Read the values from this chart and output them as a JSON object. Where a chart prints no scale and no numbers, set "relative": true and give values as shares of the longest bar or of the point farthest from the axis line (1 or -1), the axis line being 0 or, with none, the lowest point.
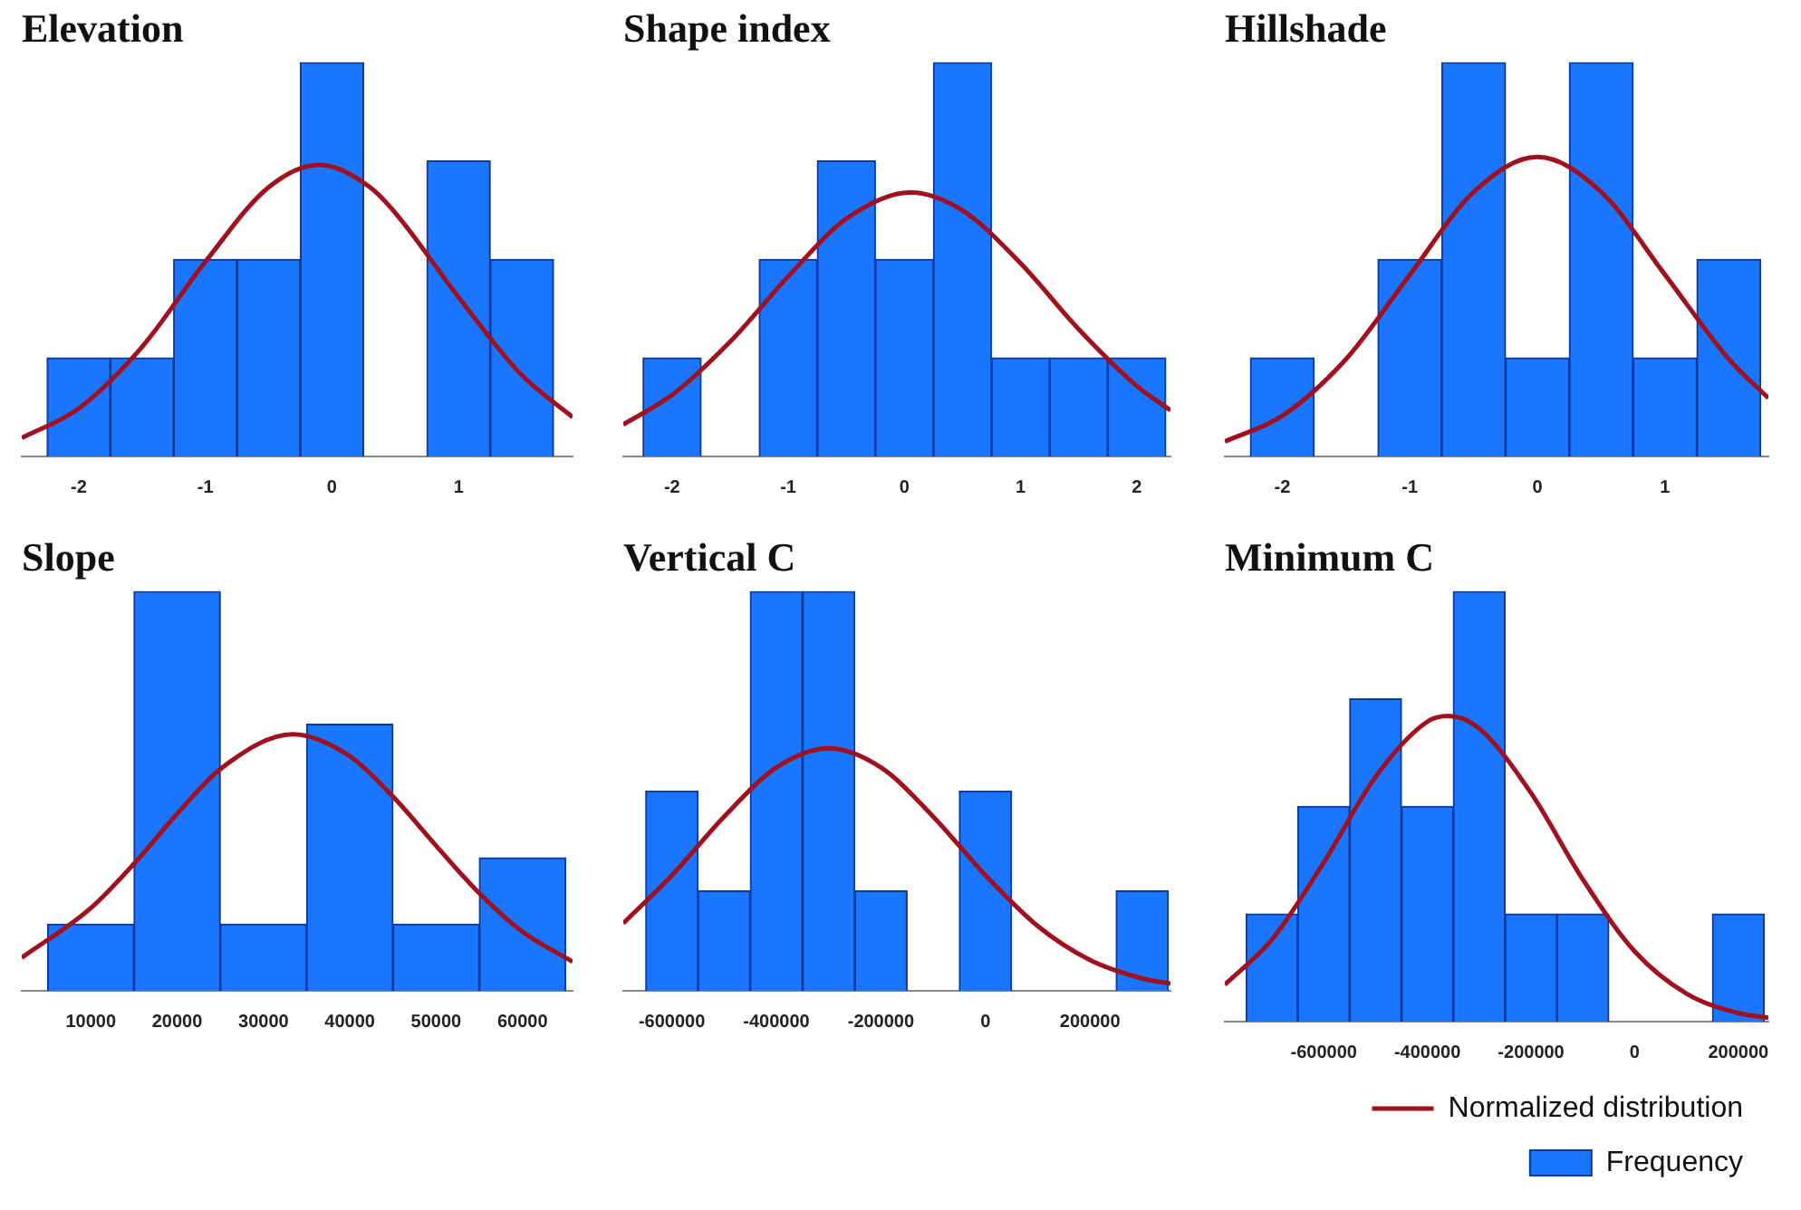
{
  "chart_data": [
    {
      "type": "histogram",
      "title": "Elevation",
      "relative": true,
      "xlim": [
        -2.45,
        1.9
      ],
      "xticks": [
        -2,
        -1,
        0,
        1
      ],
      "bins": [
        -2.25,
        -1.75,
        -1.25,
        -0.75,
        -0.25,
        0.25,
        0.75,
        1.25,
        1.75
      ],
      "series": [
        {
          "color": "#1a75ff",
          "values": [
            0.25,
            0.25,
            0.5,
            0.5,
            1,
            0,
            0.75,
            0.5
          ]
        },
        {
          "type": "line",
          "color": "#a0101f",
          "x": [
            -2.45,
            -2,
            -1.5,
            -1,
            -0.5,
            -0.1,
            0.3,
            0.5,
            1,
            1.5,
            1.9
          ],
          "values": [
            0.047,
            0.122,
            0.278,
            0.494,
            0.683,
            0.74,
            0.683,
            0.618,
            0.404,
            0.206,
            0.1
          ]
        }
      ]
    },
    {
      "type": "histogram",
      "title": "Shape index",
      "relative": true,
      "xlim": [
        -2.42,
        2.29
      ],
      "xticks": [
        -2,
        -1,
        0,
        1,
        2
      ],
      "bins": [
        -2.25,
        -1.75,
        -1.25,
        -0.75,
        -0.25,
        0.25,
        0.75,
        1.25,
        1.75,
        2.25
      ],
      "series": [
        {
          "color": "#1a75ff",
          "values": [
            0.25,
            0,
            0.5,
            0.75,
            0.5,
            1,
            0.25,
            0.25,
            0.25
          ]
        },
        {
          "type": "line",
          "color": "#a0101f",
          "x": [
            -2.42,
            -2,
            -1.5,
            -1,
            -0.5,
            0.05,
            0.5,
            1,
            1.5,
            2,
            2.29
          ],
          "values": [
            0.081,
            0.156,
            0.291,
            0.457,
            0.603,
            0.67,
            0.624,
            0.49,
            0.323,
            0.179,
            0.117
          ]
        }
      ]
    },
    {
      "type": "histogram",
      "title": "Hillshade",
      "relative": true,
      "xlim": [
        -2.45,
        1.81
      ],
      "xticks": [
        -2,
        -1,
        0,
        1
      ],
      "bins": [
        -2.25,
        -1.75,
        -1.25,
        -0.75,
        -0.25,
        0.25,
        0.75,
        1.25,
        1.75
      ],
      "series": [
        {
          "color": "#1a75ff",
          "values": [
            0.25,
            0,
            0.5,
            1,
            0.25,
            1,
            0.25,
            0.5
          ]
        },
        {
          "type": "line",
          "color": "#a0101f",
          "x": [
            -2.45,
            -2,
            -1.5,
            -1,
            -0.5,
            0,
            0.5,
            1,
            1.5,
            1.81
          ],
          "values": [
            0.038,
            0.103,
            0.247,
            0.461,
            0.671,
            0.76,
            0.671,
            0.461,
            0.247,
            0.148
          ]
        }
      ]
    },
    {
      "type": "histogram",
      "title": "Slope",
      "relative": true,
      "xlim": [
        2000,
        65800
      ],
      "xticks": [
        10000,
        20000,
        30000,
        40000,
        50000,
        60000
      ],
      "bins": [
        5000,
        15000,
        25000,
        35000,
        45000,
        55000,
        65000
      ],
      "series": [
        {
          "color": "#1a75ff",
          "values": [
            0.167,
            1,
            0.167,
            0.667,
            0.167,
            0.333
          ]
        },
        {
          "type": "line",
          "color": "#a0101f",
          "x": [
            2000,
            10000,
            15000,
            20000,
            25000,
            33400,
            40000,
            45000,
            50000,
            55000,
            60000,
            65800
          ],
          "values": [
            0.083,
            0.207,
            0.318,
            0.443,
            0.555,
            0.642,
            0.587,
            0.486,
            0.363,
            0.244,
            0.148,
            0.073
          ]
        }
      ]
    },
    {
      "type": "histogram",
      "title": "Vertical C",
      "relative": true,
      "xlim": [
        -693000,
        354000
      ],
      "xticks": [
        -600000,
        -400000,
        -200000,
        0,
        200000
      ],
      "bins": [
        -650000,
        -550000,
        -450000,
        -350000,
        -250000,
        -150000,
        -50000,
        50000,
        150000,
        250000,
        350000
      ],
      "series": [
        {
          "color": "#1a75ff",
          "values": [
            0.5,
            0.25,
            1,
            1,
            0.25,
            0,
            0.5,
            0,
            0,
            0.25
          ]
        },
        {
          "type": "line",
          "color": "#a0101f",
          "x": [
            -693000,
            -600000,
            -500000,
            -400000,
            -300000,
            -200000,
            -100000,
            0,
            100000,
            200000,
            300000,
            354000
          ],
          "values": [
            0.169,
            0.289,
            0.436,
            0.559,
            0.607,
            0.559,
            0.436,
            0.289,
            0.162,
            0.077,
            0.031,
            0.018
          ]
        }
      ]
    },
    {
      "type": "histogram",
      "title": "Minimum C",
      "relative": true,
      "legend": "bottom right",
      "xlim": [
        -791000,
        258000
      ],
      "xticks": [
        -600000,
        -400000,
        -200000,
        0,
        200000
      ],
      "bins": [
        -750000,
        -650000,
        -550000,
        -450000,
        -350000,
        -250000,
        -150000,
        -50000,
        50000,
        150000,
        250000
      ],
      "series": [
        {
          "name": "Frequency",
          "color": "#1a75ff",
          "values": [
            0.25,
            0.5,
            0.75,
            0.5,
            1,
            0.25,
            0.25,
            0,
            0,
            0.25
          ]
        },
        {
          "name": "Normalized distribution",
          "type": "line",
          "color": "#a0101f",
          "x": [
            -791000,
            -700000,
            -600000,
            -500000,
            -400000,
            -360000,
            -300000,
            -200000,
            -100000,
            0,
            100000,
            200000,
            258000
          ],
          "values": [
            0.086,
            0.191,
            0.37,
            0.569,
            0.697,
            0.71,
            0.681,
            0.531,
            0.33,
            0.163,
            0.065,
            0.02,
            0.009
          ]
        }
      ]
    }
  ]
}
